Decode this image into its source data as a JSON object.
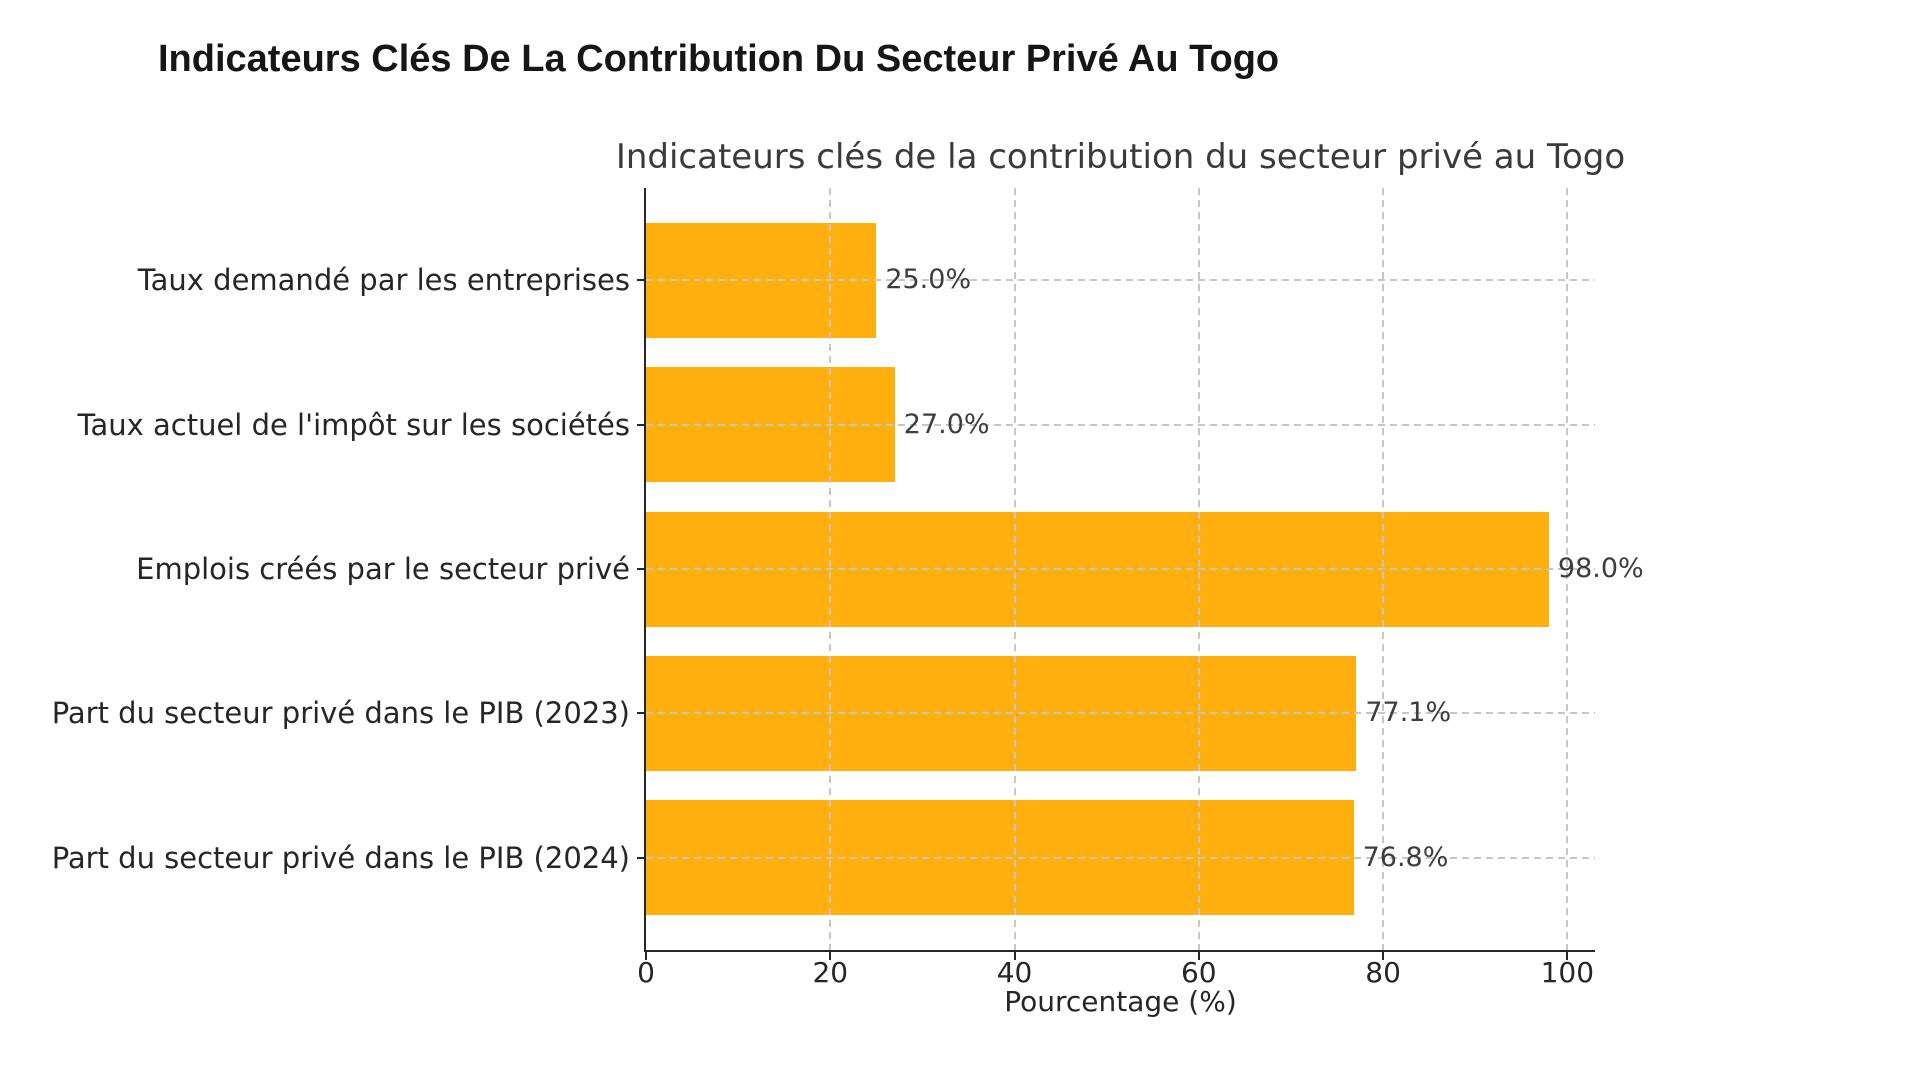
{
  "page": {
    "title": "Indicateurs Clés De La Contribution Du Secteur Privé Au Togo"
  },
  "chart_data": {
    "type": "bar",
    "orientation": "horizontal",
    "title": "Indicateurs clés de la contribution du secteur privé au Togo",
    "categories": [
      "Taux demandé par les entreprises",
      "Taux actuel de l'impôt sur les sociétés",
      "Emplois créés par le secteur privé",
      "Part du secteur privé dans le PIB (2023)",
      "Part du secteur privé dans le PIB (2024)"
    ],
    "values": [
      25.0,
      27.0,
      98.0,
      77.1,
      76.8
    ],
    "value_labels": [
      "25.0%",
      "27.0%",
      "98.0%",
      "77.1%",
      "76.8%"
    ],
    "xlabel": "Pourcentage (%)",
    "ylabel": "",
    "xticks": [
      0,
      20,
      40,
      60,
      80,
      100
    ],
    "xlim": [
      0,
      103
    ],
    "grid": "dashed-both-axes-over-bars",
    "legend": null,
    "colors": {
      "bar": "#FFB00E",
      "grid": "#c6c6c6",
      "axis": "#262626",
      "tick_text": "#262626",
      "value_text": "#3d3d3d",
      "chart_title_text": "#3a3a3a",
      "page_title_text": "#161616"
    }
  }
}
